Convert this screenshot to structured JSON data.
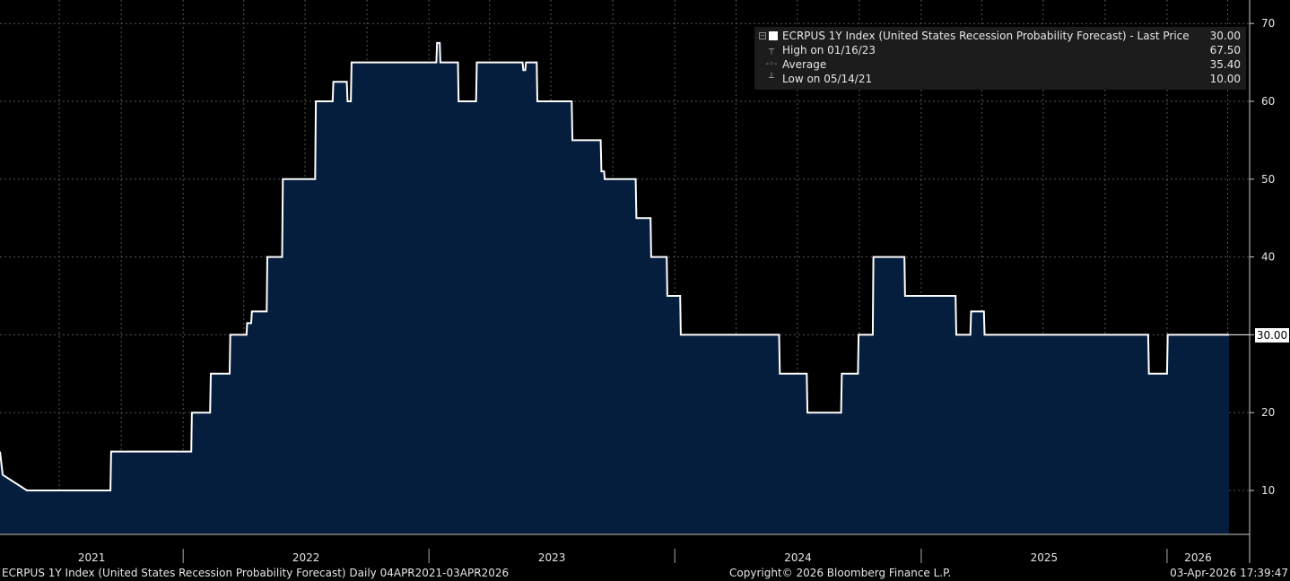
{
  "chart_data": {
    "type": "area",
    "title": "ECRPUS 1Y Index (United States Recession Probability Forecast)",
    "x_range": [
      "2021-04-04",
      "2026-04-03"
    ],
    "ylim": [
      5,
      72
    ],
    "yticks": [
      10,
      20,
      30,
      40,
      50,
      60,
      70
    ],
    "x_labels": [
      "2021",
      "2022",
      "2023",
      "2024",
      "2025",
      "2026"
    ],
    "grid": true,
    "legend_position": "top-right",
    "colors": {
      "fill": "#061e3d",
      "line": "#ffffff",
      "background": "#000000",
      "grid": "#555555"
    },
    "series": [
      {
        "name": "ECRPUS 1Y Index (United States Recession Probability Forecast)",
        "points": [
          [
            "2021-04-04",
            15
          ],
          [
            "2021-04-08",
            12
          ],
          [
            "2021-05-14",
            10
          ],
          [
            "2021-09-15",
            10
          ],
          [
            "2021-09-16",
            15
          ],
          [
            "2022-01-13",
            15
          ],
          [
            "2022-01-14",
            20
          ],
          [
            "2022-02-10",
            20
          ],
          [
            "2022-02-11",
            25
          ],
          [
            "2022-03-11",
            25
          ],
          [
            "2022-03-12",
            30
          ],
          [
            "2022-04-05",
            30
          ],
          [
            "2022-04-06",
            31.5
          ],
          [
            "2022-04-12",
            31.5
          ],
          [
            "2022-04-13",
            33
          ],
          [
            "2022-05-05",
            33
          ],
          [
            "2022-05-06",
            40
          ],
          [
            "2022-05-28",
            40
          ],
          [
            "2022-05-29",
            50
          ],
          [
            "2022-07-16",
            50
          ],
          [
            "2022-07-17",
            60
          ],
          [
            "2022-08-11",
            60
          ],
          [
            "2022-08-12",
            62.5
          ],
          [
            "2022-09-01",
            62.5
          ],
          [
            "2022-09-02",
            60
          ],
          [
            "2022-09-07",
            60
          ],
          [
            "2022-09-08",
            65
          ],
          [
            "2023-01-12",
            65
          ],
          [
            "2023-01-13",
            67.5
          ],
          [
            "2023-01-17",
            67.5
          ],
          [
            "2023-01-18",
            65
          ],
          [
            "2023-02-13",
            65
          ],
          [
            "2023-02-14",
            60
          ],
          [
            "2023-03-12",
            60
          ],
          [
            "2023-03-13",
            65
          ],
          [
            "2023-05-20",
            65
          ],
          [
            "2023-05-21",
            64
          ],
          [
            "2023-05-24",
            64
          ],
          [
            "2023-05-25",
            65
          ],
          [
            "2023-06-10",
            65
          ],
          [
            "2023-06-11",
            60
          ],
          [
            "2023-08-01",
            60
          ],
          [
            "2023-08-02",
            55
          ],
          [
            "2023-09-13",
            55
          ],
          [
            "2023-09-14",
            51
          ],
          [
            "2023-09-18",
            51
          ],
          [
            "2023-09-19",
            50
          ],
          [
            "2023-11-04",
            50
          ],
          [
            "2023-11-05",
            45
          ],
          [
            "2023-11-26",
            45
          ],
          [
            "2023-11-27",
            40
          ],
          [
            "2023-12-20",
            40
          ],
          [
            "2023-12-21",
            35
          ],
          [
            "2024-01-09",
            35
          ],
          [
            "2024-01-10",
            30
          ],
          [
            "2024-06-04",
            30
          ],
          [
            "2024-06-05",
            25
          ],
          [
            "2024-07-15",
            25
          ],
          [
            "2024-07-16",
            20
          ],
          [
            "2024-09-04",
            20
          ],
          [
            "2024-09-05",
            25
          ],
          [
            "2024-09-29",
            25
          ],
          [
            "2024-09-30",
            30
          ],
          [
            "2024-10-21",
            30
          ],
          [
            "2024-10-22",
            40
          ],
          [
            "2024-12-07",
            40
          ],
          [
            "2024-12-08",
            35
          ],
          [
            "2025-02-21",
            35
          ],
          [
            "2025-02-22",
            30
          ],
          [
            "2025-03-15",
            30
          ],
          [
            "2025-03-16",
            33
          ],
          [
            "2025-04-04",
            33
          ],
          [
            "2025-04-05",
            30
          ],
          [
            "2025-12-04",
            30
          ],
          [
            "2025-12-05",
            25
          ],
          [
            "2026-01-01",
            25
          ],
          [
            "2026-01-02",
            30
          ],
          [
            "2026-04-03",
            30
          ]
        ]
      }
    ]
  },
  "legend": {
    "title": "ECRPUS 1Y Index (United States Recession Probability Forecast)  - Last Price",
    "last_price": "30.00",
    "high_label": "High on 01/16/23",
    "high_value": "67.50",
    "average_label": "Average",
    "average_value": "35.40",
    "low_label": "Low on 05/14/21",
    "low_value": "10.00"
  },
  "last_price_tag": "30.00",
  "footer": {
    "description": "ECRPUS 1Y Index (United States Recession Probability Forecast) Daily 04APR2021-03APR2026",
    "copyright": "Copyright© 2026 Bloomberg Finance L.P.",
    "timestamp": "03-Apr-2026 17:39:47"
  }
}
